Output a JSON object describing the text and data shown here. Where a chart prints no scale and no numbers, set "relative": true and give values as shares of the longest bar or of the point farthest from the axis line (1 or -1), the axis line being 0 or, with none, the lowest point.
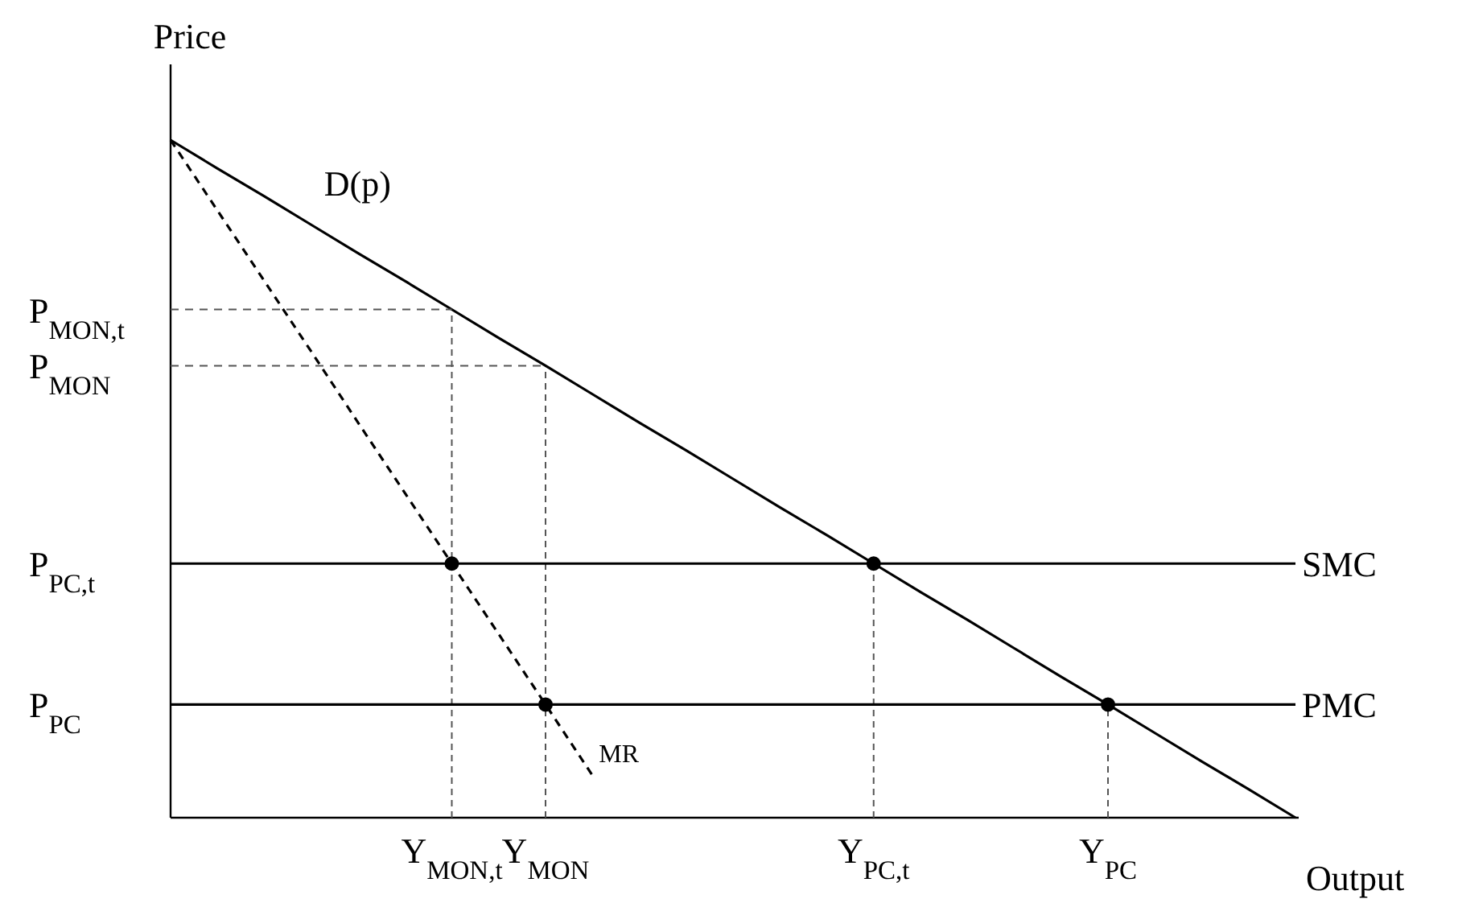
{
  "chart_data": {
    "type": "line",
    "relative": true,
    "ylabel": "Price",
    "xlabel": "Output",
    "categories": [
      null,
      null,
      null,
      null,
      null,
      null,
      "Y$_{MON,t}$",
      null,
      "Y$_{MON}$",
      null,
      null,
      null,
      null,
      null,
      null,
      "Y$_{PC,t}$",
      null,
      null,
      null,
      null,
      "Y$_{PC}$",
      null,
      null,
      null,
      null
    ],
    "annotations": [
      "P$_{MON,t}$",
      "P$_{MON}$",
      "P$_{PC,t}$",
      "P$_{PC}$"
    ],
    "series": [
      {
        "name": "D(p)",
        "color": "#000000",
        "line_style": "solid",
        "values": [
          1,
          0.958,
          0.917,
          0.875,
          0.833,
          0.792,
          0.75,
          0.708,
          0.667,
          0.625,
          0.583,
          0.542,
          0.5,
          0.458,
          0.417,
          0.375,
          0.333,
          0.292,
          0.25,
          0.208,
          0.167,
          0.125,
          0.083,
          0.042,
          0
        ]
      },
      {
        "name": "MR",
        "color": "#000000",
        "line_style": "dashed",
        "values": [
          1,
          0.896,
          0.792,
          0.688,
          0.583,
          0.479,
          0.375,
          0.271,
          0.167,
          0.0625,
          null,
          null,
          null,
          null,
          null,
          null,
          null,
          null,
          null,
          null,
          null,
          null,
          null,
          null,
          null
        ]
      },
      {
        "name": "SMC",
        "color": "#000000",
        "line_style": "solid",
        "values": [
          0.375,
          0.375,
          0.375,
          0.375,
          0.375,
          0.375,
          0.375,
          0.375,
          0.375,
          0.375,
          0.375,
          0.375,
          0.375,
          0.375,
          0.375,
          0.375,
          0.375,
          0.375,
          0.375,
          0.375,
          0.375,
          0.375,
          0.375,
          0.375,
          0.375
        ]
      },
      {
        "name": "PMC",
        "color": "#000000",
        "line_style": "solid",
        "values": [
          0.167,
          0.167,
          0.167,
          0.167,
          0.167,
          0.167,
          0.167,
          0.167,
          0.167,
          0.167,
          0.167,
          0.167,
          0.167,
          0.167,
          0.167,
          0.167,
          0.167,
          0.167,
          0.167,
          0.167,
          0.167,
          0.167,
          0.167,
          0.167,
          0.167
        ]
      },
      {
        "color": "#555555",
        "line_style": "dashed",
        "values": [
          0.75,
          0.75,
          0.75,
          0.75,
          0.75,
          0.75,
          0.75,
          null,
          null,
          null,
          null,
          null,
          null,
          null,
          null,
          null,
          null,
          null,
          null,
          null,
          null,
          null,
          null,
          null,
          null
        ]
      },
      {
        "color": "#555555",
        "line_style": "dashed",
        "values": [
          0.667,
          0.667,
          0.667,
          0.667,
          0.667,
          0.667,
          0.667,
          0.667,
          0.667,
          null,
          null,
          null,
          null,
          null,
          null,
          null,
          null,
          null,
          null,
          null,
          null,
          null,
          null,
          null,
          null
        ]
      },
      {
        "type": "scatter",
        "color": "#000000",
        "marker": "circle",
        "values": [
          null,
          null,
          null,
          null,
          null,
          null,
          0.375,
          null,
          0.167,
          null,
          null,
          null,
          null,
          null,
          null,
          0.375,
          null,
          null,
          null,
          null,
          0.167,
          null,
          null,
          null,
          null
        ]
      }
    ]
  }
}
